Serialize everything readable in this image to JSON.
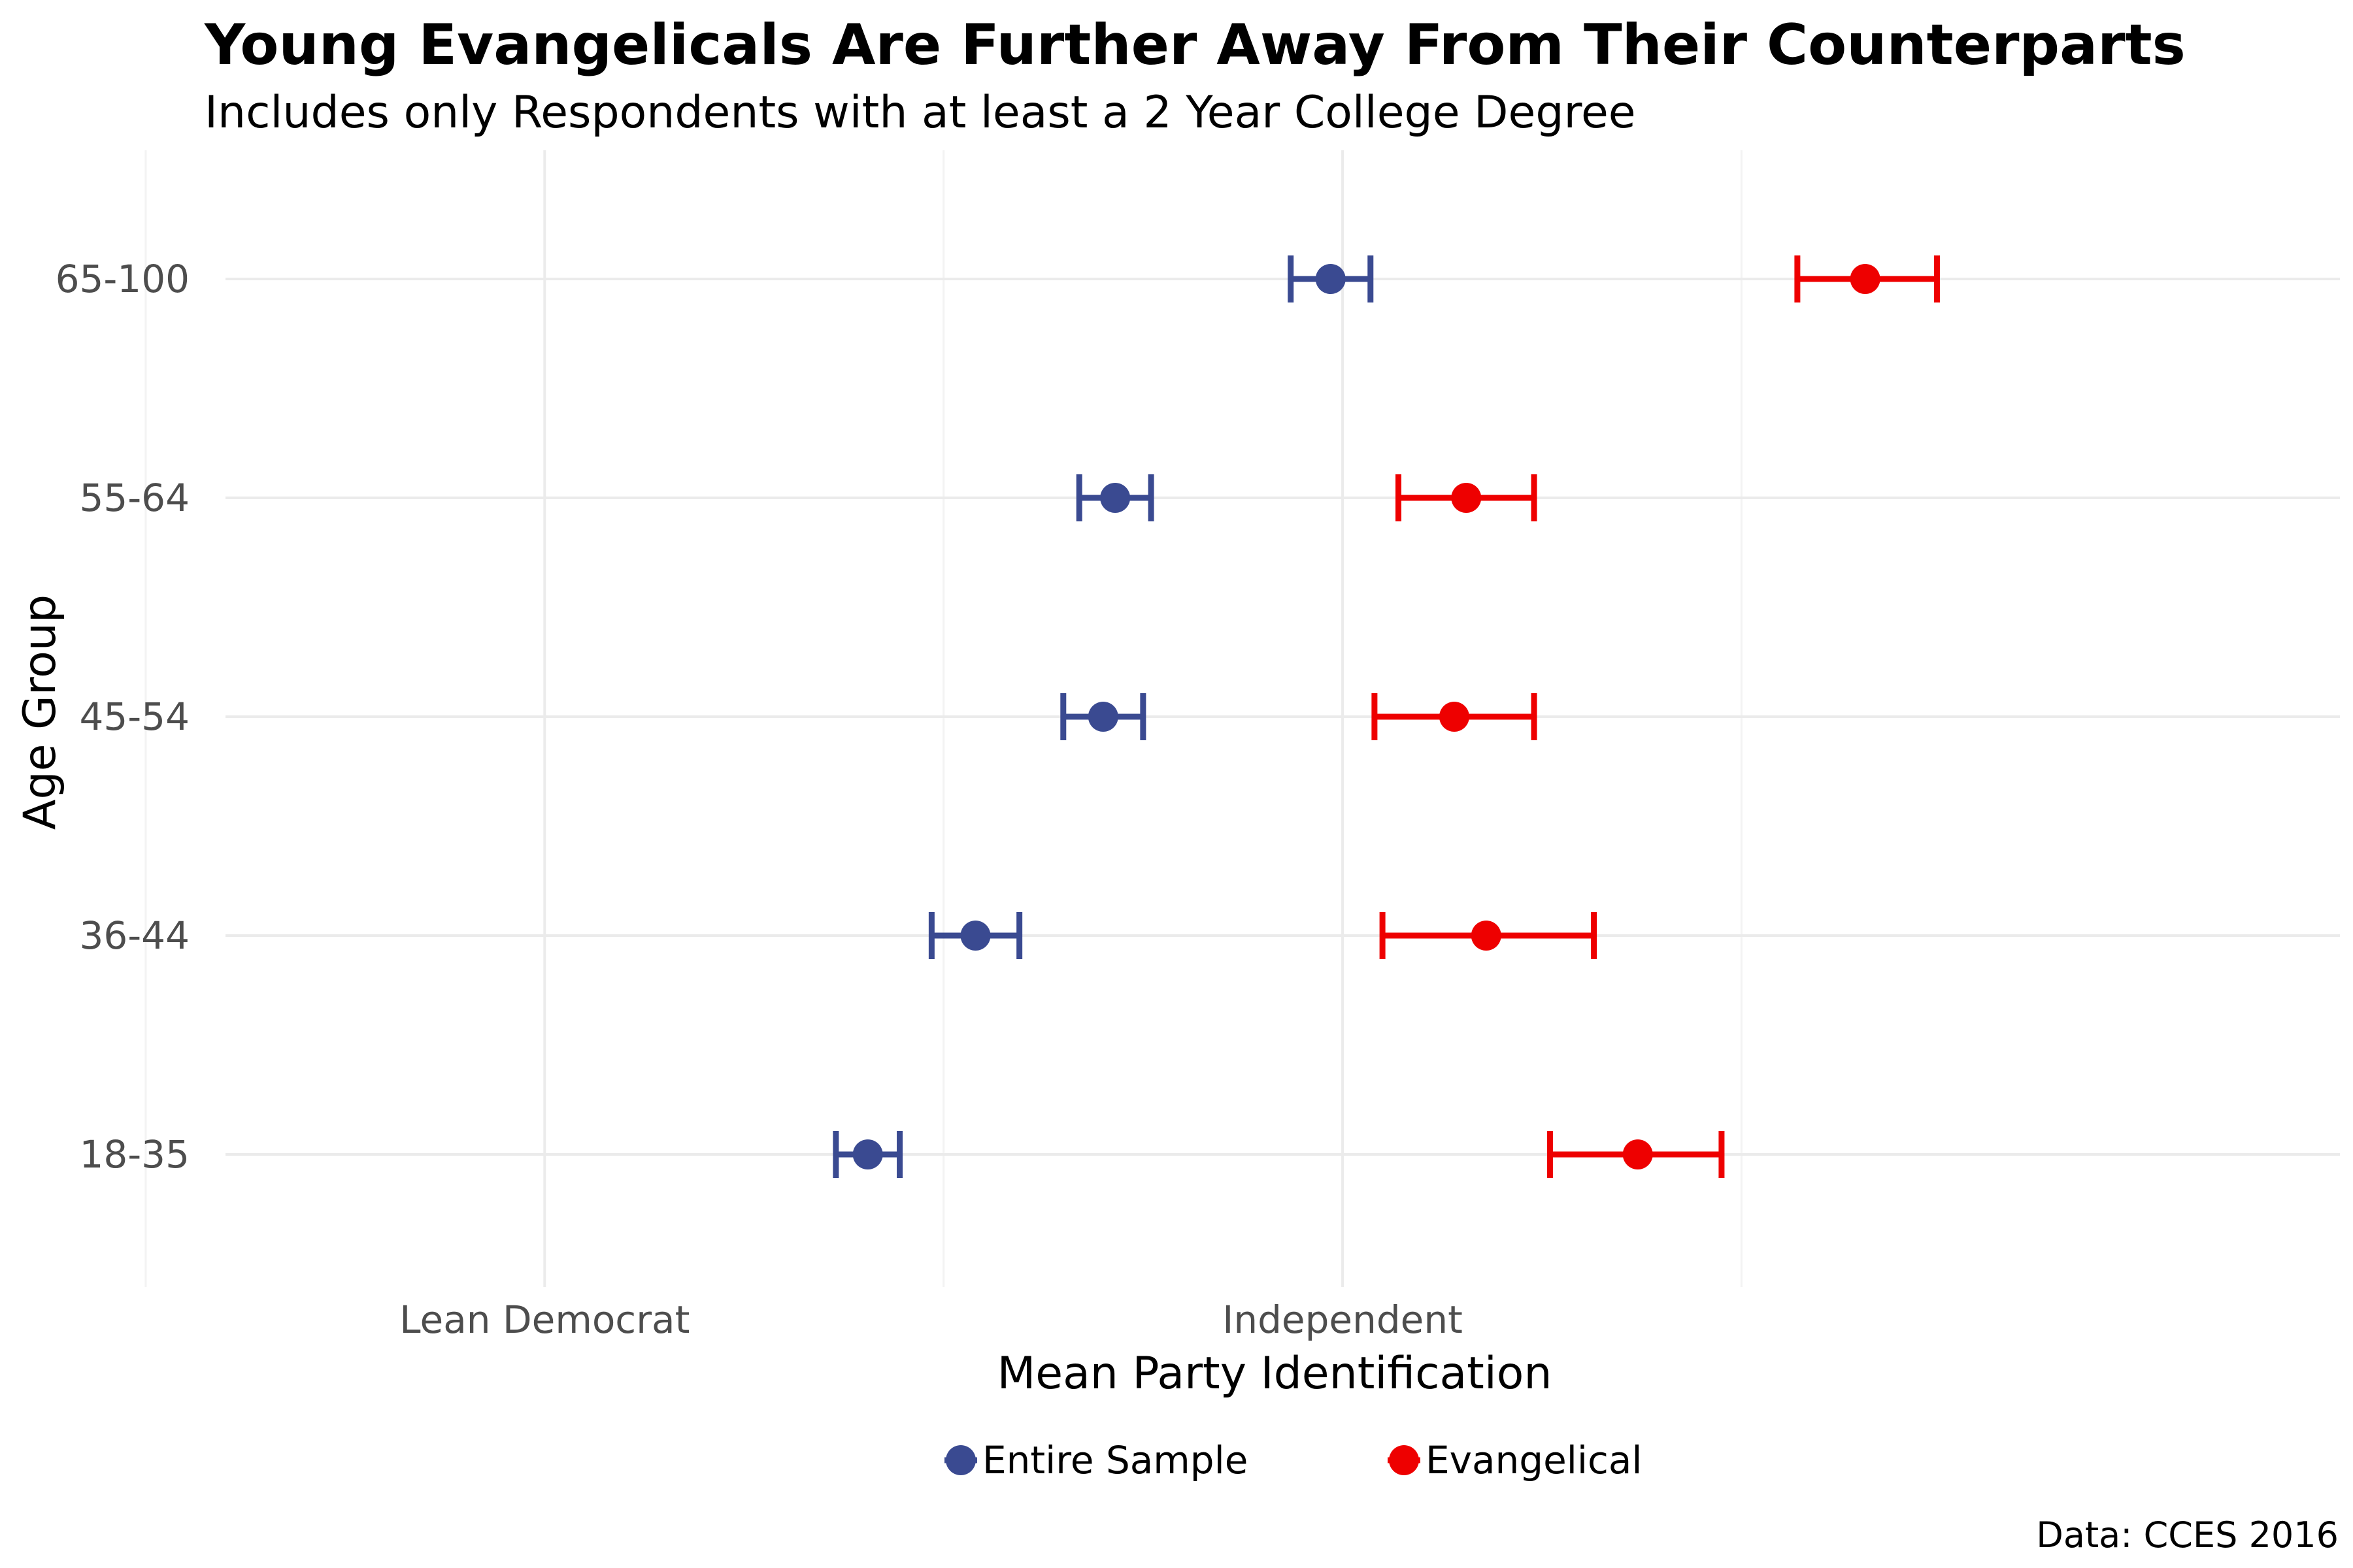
{
  "chart_data": {
    "type": "dot-errorbar",
    "title": "Young Evangelicals Are Further Away From Their Counterparts",
    "subtitle": "Includes only Respondents with at least a 2 Year College Degree",
    "xlabel": "Mean Party Identification",
    "ylabel": "Age Group",
    "caption": "Data: CCES 2016",
    "xlim": [
      2.6,
      5.25
    ],
    "x_ticks": [
      {
        "value": 3,
        "label": "Lean Democrat"
      },
      {
        "value": 4,
        "label": "Independent"
      }
    ],
    "x_minor_gridlines": [
      2.5,
      3.5,
      4.5
    ],
    "categories": [
      "18-35",
      "36-44",
      "45-54",
      "55-64",
      "65-100"
    ],
    "grid": true,
    "legend_position": "bottom",
    "series": [
      {
        "name": "Entire Sample",
        "color": "#3a4a91",
        "points": [
          {
            "category": "18-35",
            "mean": 3.405,
            "low": 3.365,
            "high": 3.445
          },
          {
            "category": "36-44",
            "mean": 3.54,
            "low": 3.485,
            "high": 3.595
          },
          {
            "category": "45-54",
            "mean": 3.7,
            "low": 3.65,
            "high": 3.75
          },
          {
            "category": "55-64",
            "mean": 3.715,
            "low": 3.67,
            "high": 3.76
          },
          {
            "category": "65-100",
            "mean": 3.985,
            "low": 3.935,
            "high": 4.035
          }
        ]
      },
      {
        "name": "Evangelical",
        "color": "#ee0000",
        "points": [
          {
            "category": "18-35",
            "mean": 4.37,
            "low": 4.26,
            "high": 4.475
          },
          {
            "category": "36-44",
            "mean": 4.18,
            "low": 4.05,
            "high": 4.315
          },
          {
            "category": "45-54",
            "mean": 4.14,
            "low": 4.04,
            "high": 4.24
          },
          {
            "category": "55-64",
            "mean": 4.155,
            "low": 4.07,
            "high": 4.24
          },
          {
            "category": "65-100",
            "mean": 4.655,
            "low": 4.57,
            "high": 4.745
          }
        ]
      }
    ]
  }
}
